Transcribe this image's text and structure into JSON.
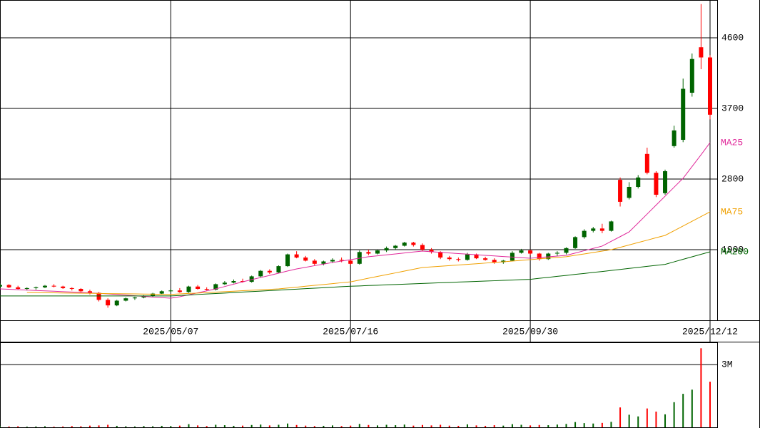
{
  "chart_data": {
    "type": "candlestick",
    "categories": [
      null,
      null,
      null,
      null,
      null,
      null,
      null,
      null,
      null,
      null,
      null,
      null,
      null,
      null,
      null,
      null,
      null,
      null,
      null,
      "2025/05/07",
      null,
      null,
      null,
      null,
      null,
      null,
      null,
      null,
      null,
      null,
      null,
      null,
      null,
      null,
      null,
      null,
      null,
      null,
      null,
      "2025/07/16",
      null,
      null,
      null,
      null,
      null,
      null,
      null,
      null,
      null,
      null,
      null,
      null,
      null,
      null,
      null,
      null,
      null,
      null,
      null,
      "2025/09/30",
      null,
      null,
      null,
      null,
      null,
      null,
      null,
      null,
      null,
      null,
      null,
      null,
      null,
      null,
      null,
      null,
      null,
      null,
      null,
      "2025/12/12"
    ],
    "ohlc": [
      [
        1430,
        1470,
        1400,
        1450
      ],
      [
        1450,
        1460,
        1410,
        1420
      ],
      [
        1420,
        1440,
        1390,
        1400
      ],
      [
        1400,
        1420,
        1380,
        1410
      ],
      [
        1410,
        1430,
        1390,
        1420
      ],
      [
        1420,
        1450,
        1410,
        1440
      ],
      [
        1440,
        1460,
        1420,
        1430
      ],
      [
        1430,
        1440,
        1400,
        1410
      ],
      [
        1410,
        1420,
        1380,
        1400
      ],
      [
        1400,
        1410,
        1360,
        1370
      ],
      [
        1370,
        1390,
        1330,
        1350
      ],
      [
        1350,
        1360,
        1240,
        1260
      ],
      [
        1260,
        1280,
        1160,
        1190
      ],
      [
        1190,
        1260,
        1180,
        1250
      ],
      [
        1250,
        1290,
        1240,
        1280
      ],
      [
        1280,
        1300,
        1260,
        1290
      ],
      [
        1290,
        1320,
        1280,
        1310
      ],
      [
        1310,
        1350,
        1300,
        1340
      ],
      [
        1340,
        1380,
        1330,
        1370
      ],
      [
        1370,
        1400,
        1360,
        1380
      ],
      [
        1380,
        1410,
        1350,
        1360
      ],
      [
        1360,
        1440,
        1350,
        1430
      ],
      [
        1430,
        1450,
        1390,
        1400
      ],
      [
        1400,
        1420,
        1380,
        1390
      ],
      [
        1390,
        1470,
        1380,
        1460
      ],
      [
        1460,
        1500,
        1450,
        1480
      ],
      [
        1480,
        1520,
        1470,
        1500
      ],
      [
        1500,
        1530,
        1480,
        1490
      ],
      [
        1490,
        1570,
        1480,
        1560
      ],
      [
        1560,
        1640,
        1550,
        1630
      ],
      [
        1630,
        1650,
        1590,
        1610
      ],
      [
        1610,
        1700,
        1600,
        1690
      ],
      [
        1690,
        1850,
        1680,
        1840
      ],
      [
        1840,
        1880,
        1790,
        1800
      ],
      [
        1800,
        1820,
        1750,
        1760
      ],
      [
        1760,
        1780,
        1700,
        1720
      ],
      [
        1720,
        1760,
        1700,
        1750
      ],
      [
        1750,
        1790,
        1730,
        1770
      ],
      [
        1770,
        1800,
        1740,
        1760
      ],
      [
        1760,
        1780,
        1700,
        1720
      ],
      [
        1720,
        1890,
        1710,
        1870
      ],
      [
        1870,
        1900,
        1830,
        1850
      ],
      [
        1850,
        1900,
        1840,
        1890
      ],
      [
        1890,
        1940,
        1870,
        1920
      ],
      [
        1920,
        1960,
        1900,
        1950
      ],
      [
        1950,
        2000,
        1940,
        1990
      ],
      [
        1990,
        2000,
        1940,
        1960
      ],
      [
        1960,
        1980,
        1880,
        1900
      ],
      [
        1900,
        1920,
        1850,
        1870
      ],
      [
        1870,
        1880,
        1780,
        1800
      ],
      [
        1800,
        1820,
        1760,
        1780
      ],
      [
        1780,
        1800,
        1750,
        1770
      ],
      [
        1770,
        1860,
        1760,
        1840
      ],
      [
        1840,
        1850,
        1780,
        1790
      ],
      [
        1790,
        1810,
        1760,
        1770
      ],
      [
        1770,
        1790,
        1720,
        1740
      ],
      [
        1740,
        1770,
        1720,
        1760
      ],
      [
        1760,
        1880,
        1750,
        1860
      ],
      [
        1860,
        1910,
        1850,
        1890
      ],
      [
        1890,
        1900,
        1830,
        1850
      ],
      [
        1850,
        1860,
        1760,
        1780
      ],
      [
        1780,
        1860,
        1770,
        1850
      ],
      [
        1850,
        1880,
        1820,
        1860
      ],
      [
        1860,
        1930,
        1840,
        1920
      ],
      [
        1920,
        2070,
        1910,
        2060
      ],
      [
        2060,
        2160,
        2040,
        2140
      ],
      [
        2140,
        2190,
        2120,
        2170
      ],
      [
        2170,
        2230,
        2110,
        2140
      ],
      [
        2140,
        2270,
        2130,
        2260
      ],
      [
        2790,
        2820,
        2450,
        2510
      ],
      [
        2560,
        2760,
        2540,
        2700
      ],
      [
        2700,
        2850,
        2680,
        2820
      ],
      [
        3120,
        3200,
        2860,
        2880
      ],
      [
        2880,
        2900,
        2570,
        2600
      ],
      [
        2620,
        2920,
        2600,
        2900
      ],
      [
        3220,
        3480,
        3200,
        3420
      ],
      [
        3300,
        4080,
        3270,
        3950
      ],
      [
        3900,
        4400,
        3850,
        4330
      ],
      [
        4480,
        5030,
        4200,
        4350
      ],
      [
        4350,
        4380,
        3560,
        3620
      ]
    ],
    "up_color": "#006400",
    "down_color": "#ff0000",
    "ylim": [
      1000,
      5082
    ],
    "yticks": [
      1900,
      2800,
      3700,
      4600
    ],
    "lines": [
      {
        "name": "MA25",
        "color": "#e0289a",
        "values": [
          1400,
          1395,
          1390,
          1385,
          1380,
          1375,
          1370,
          1365,
          1360,
          1355,
          1350,
          1343,
          1336,
          1328,
          1320,
          1312,
          1304,
          1296,
          1289,
          1282,
          1300,
          1325,
          1350,
          1375,
          1400,
          1430,
          1460,
          1490,
          1518,
          1545,
          1572,
          1600,
          1628,
          1655,
          1675,
          1696,
          1716,
          1737,
          1755,
          1773,
          1791,
          1810,
          1822,
          1834,
          1846,
          1858,
          1870,
          1882,
          1874,
          1866,
          1858,
          1850,
          1843,
          1835,
          1827,
          1820,
          1813,
          1806,
          1798,
          1791,
          1800,
          1809,
          1818,
          1827,
          1857,
          1887,
          1916,
          1946,
          2006,
          2066,
          2127,
          2240,
          2354,
          2468,
          2582,
          2696,
          2810,
          2960,
          3110,
          3264
        ]
      },
      {
        "name": "MA75",
        "color": "#f0a000",
        "values": [
          null,
          null,
          null,
          1355,
          1353,
          1352,
          1350,
          1348,
          1347,
          1345,
          1344,
          1342,
          1340,
          1339,
          1337,
          1336,
          1334,
          1333,
          1331,
          1330,
          1336,
          1342,
          1347,
          1353,
          1359,
          1365,
          1371,
          1377,
          1383,
          1389,
          1394,
          1400,
          1411,
          1422,
          1434,
          1445,
          1456,
          1467,
          1479,
          1490,
          1513,
          1536,
          1559,
          1582,
          1604,
          1627,
          1650,
          1673,
          1681,
          1689,
          1697,
          1705,
          1713,
          1721,
          1729,
          1737,
          1746,
          1755,
          1764,
          1773,
          1783,
          1792,
          1801,
          1810,
          1828,
          1846,
          1864,
          1882,
          1900,
          1930,
          1960,
          1991,
          2021,
          2052,
          2082,
          2142,
          2202,
          2262,
          2322,
          2382
        ]
      },
      {
        "name": "MA200",
        "color": "#006400",
        "values": [
          1310,
          1310,
          1310,
          1310,
          1310,
          1310,
          1310,
          1310,
          1310,
          1310,
          1310,
          1310,
          1310,
          1310,
          1310,
          1310,
          1310,
          1310,
          1310,
          1310,
          1316,
          1322,
          1329,
          1335,
          1341,
          1347,
          1353,
          1360,
          1366,
          1372,
          1378,
          1384,
          1391,
          1397,
          1403,
          1409,
          1415,
          1422,
          1428,
          1434,
          1438,
          1443,
          1447,
          1452,
          1456,
          1460,
          1465,
          1469,
          1474,
          1478,
          1482,
          1487,
          1491,
          1496,
          1500,
          1504,
          1509,
          1513,
          1518,
          1522,
          1535,
          1547,
          1560,
          1572,
          1585,
          1597,
          1610,
          1622,
          1635,
          1648,
          1661,
          1674,
          1687,
          1700,
          1713,
          1745,
          1777,
          1809,
          1841,
          1873
        ]
      }
    ],
    "volume": {
      "values": [
        60000,
        40000,
        50000,
        30000,
        40000,
        50000,
        30000,
        40000,
        60000,
        50000,
        80000,
        90000,
        120000,
        70000,
        50000,
        40000,
        60000,
        50000,
        70000,
        60000,
        80000,
        150000,
        90000,
        60000,
        120000,
        100000,
        70000,
        80000,
        110000,
        130000,
        90000,
        120000,
        180000,
        110000,
        80000,
        60000,
        70000,
        90000,
        60000,
        80000,
        160000,
        110000,
        90000,
        120000,
        100000,
        130000,
        80000,
        110000,
        90000,
        120000,
        80000,
        70000,
        140000,
        90000,
        70000,
        100000,
        80000,
        150000,
        120000,
        90000,
        110000,
        100000,
        130000,
        160000,
        250000,
        200000,
        180000,
        210000,
        260000,
        950000,
        600000,
        520000,
        900000,
        750000,
        620000,
        1200000,
        1600000,
        1800000,
        3780000,
        2180000
      ],
      "ylim": [
        0,
        4060000
      ],
      "yticks": [
        {
          "value": 3000000,
          "label": "3M"
        }
      ]
    },
    "grid": true
  }
}
